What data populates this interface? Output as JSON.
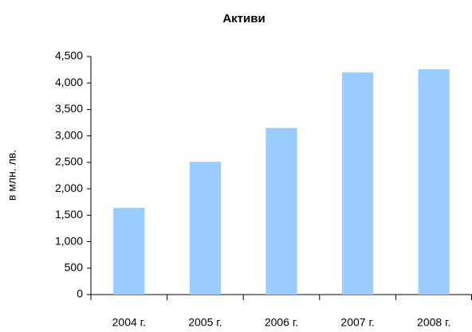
{
  "chart_data": {
    "type": "bar",
    "title": "Активи",
    "y_label": "в млн. лв.",
    "categories": [
      "2004 г.",
      "2005 г.",
      "2006 г.",
      "2007 г.",
      "2008 г."
    ],
    "values": [
      1640,
      2510,
      3150,
      4200,
      4260
    ],
    "color": "#99ccff",
    "ylim": [
      0,
      4500
    ],
    "yticks": [
      0,
      500,
      {
        "value": 1000,
        "label": "1,000"
      },
      {
        "value": 1500,
        "label": "1,500"
      },
      {
        "value": 2000,
        "label": "2,000"
      },
      {
        "value": 2500,
        "label": "2,500"
      },
      {
        "value": 3000,
        "label": "3,000"
      },
      {
        "value": 3500,
        "label": "3,500"
      },
      {
        "value": 4000,
        "label": "4,000"
      },
      {
        "value": 4500,
        "label": "4,500"
      }
    ],
    "grid": false
  }
}
